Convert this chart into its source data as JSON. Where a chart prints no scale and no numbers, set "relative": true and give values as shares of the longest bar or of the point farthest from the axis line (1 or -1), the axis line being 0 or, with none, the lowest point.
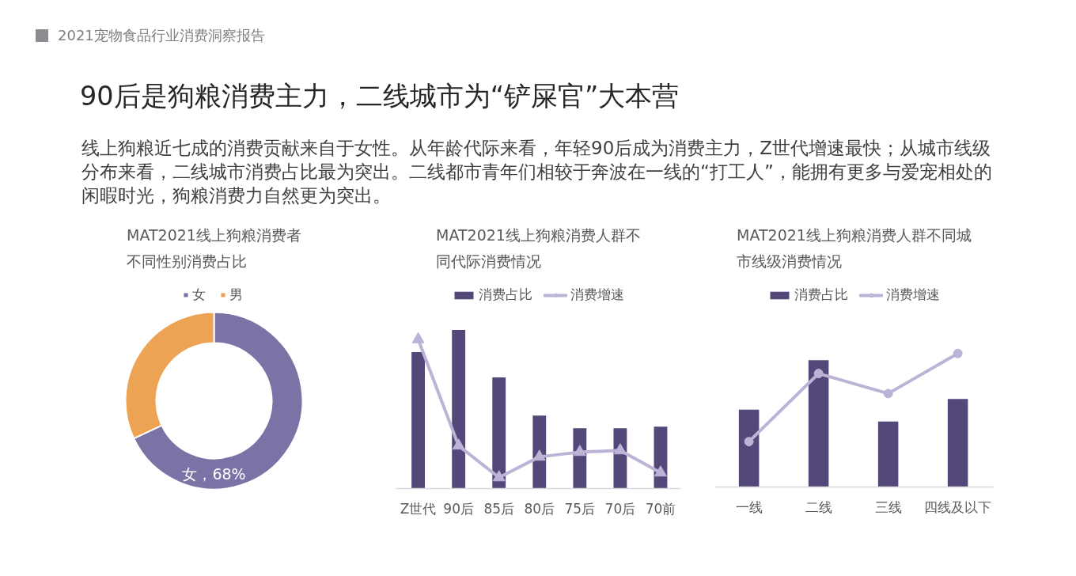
{
  "chart_data": [
    {
      "type": "other",
      "title": "90后是狗粮消费主力，二线城市为“铲屎官”大本营",
      "subtitle": "线上狗粮近七成的消费贡献来自于女性。从年龄代际来看，年轻90后成为消费主力，Z世代增速最快；从城市线级分布来看，二线城市消费占比最为突出。二线都市青年们相较于奔波在一线的“打工人”，能拥有更多与爱宠相处的闲暇时光，狗粮消费力自然更为突出。",
      "annotations": [
        "2021宠物食品行业消费洞察报告"
      ]
    },
    {
      "type": "donut",
      "title": "MAT2021线上狗粮消费者不同性别消费占比",
      "categories": [
        "女",
        "男"
      ],
      "values": [
        68,
        32
      ],
      "colors": [
        "#7a73a6",
        "#eca354"
      ],
      "value_labels": [
        "女，68%",
        null
      ],
      "legend": "top"
    },
    {
      "type": "bar",
      "title": "MAT2021线上狗粮消费人群不同代际消费情况",
      "categories": [
        "Z世代",
        "90后",
        "85后",
        "80后",
        "75后",
        "70后",
        "70前"
      ],
      "relative": true,
      "legend": "top",
      "series": [
        {
          "name": "消费占比",
          "type": "bar",
          "color": "#54477a",
          "values": [
            0.86,
            1,
            0.7,
            0.46,
            0.38,
            0.38,
            0.39
          ]
        },
        {
          "name": "消费增速",
          "type": "line",
          "color": "#bcb3d6",
          "marker": "triangle",
          "values": [
            0.94,
            0.27,
            0.07,
            0.2,
            0.23,
            0.24,
            0.1
          ]
        }
      ]
    },
    {
      "type": "bar",
      "title": "MAT2021线上狗粮消费人群不同城市线级消费情况",
      "categories": [
        "一线",
        "二线",
        "三线",
        "四线及以下"
      ],
      "relative": true,
      "legend": "top",
      "series": [
        {
          "name": "消费占比",
          "type": "bar",
          "color": "#54477a",
          "values": [
            0.58,
            0.95,
            0.49,
            0.66
          ]
        },
        {
          "name": "消费增速",
          "type": "line",
          "color": "#bcb3d6",
          "marker": "circle",
          "values": [
            0.34,
            0.85,
            0.7,
            1
          ]
        }
      ]
    }
  ]
}
